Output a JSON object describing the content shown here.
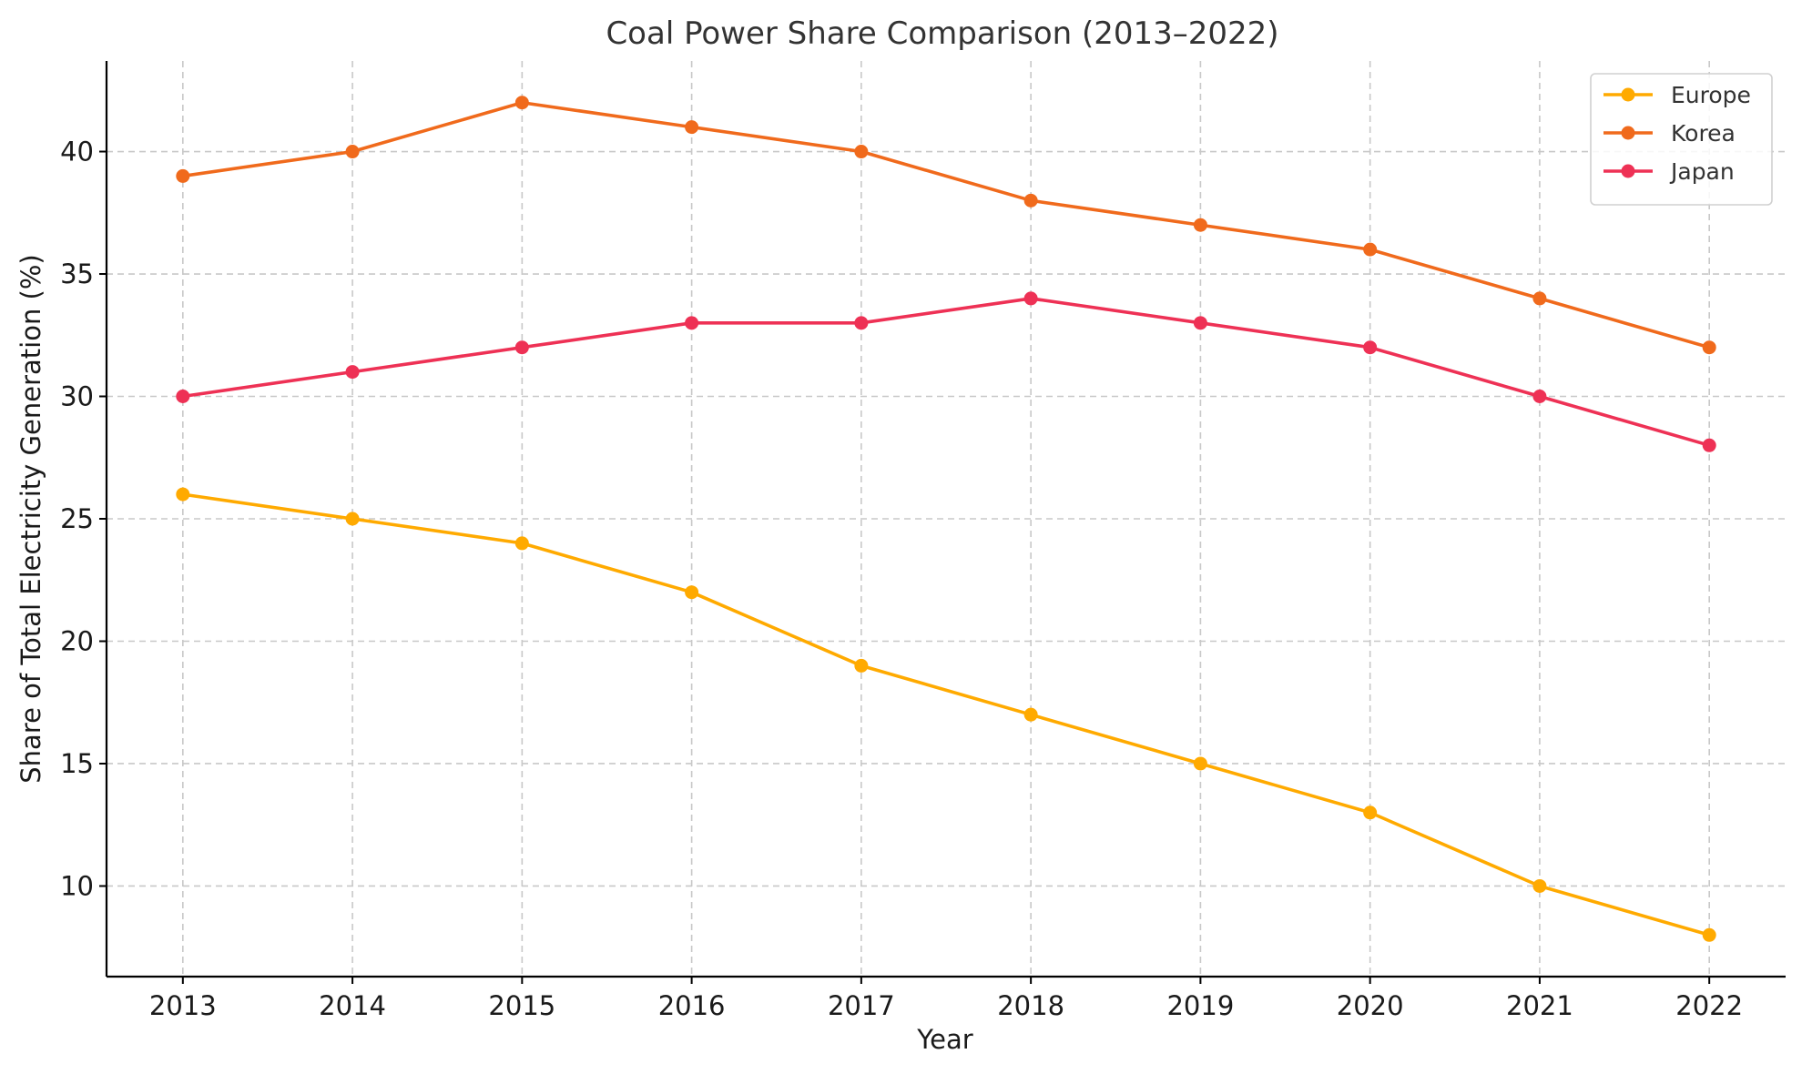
{
  "chart_data": {
    "type": "line",
    "title": "Coal Power Share Comparison (2013–2022)",
    "xlabel": "Year",
    "ylabel": "Share of Total Electricity Generation (%)",
    "x": [
      2013,
      2014,
      2015,
      2016,
      2017,
      2018,
      2019,
      2020,
      2021,
      2022
    ],
    "xlim": [
      2012.55,
      2022.45
    ],
    "ylim": [
      6.3,
      43.7
    ],
    "yticks": [
      10,
      15,
      20,
      25,
      30,
      35,
      40
    ],
    "grid": true,
    "legend_position": "top-right",
    "series": [
      {
        "name": "Europe",
        "color": "#FFAA00",
        "values": [
          26,
          25,
          24,
          22,
          19,
          17,
          15,
          13,
          10,
          8
        ]
      },
      {
        "name": "Korea",
        "color": "#F06A1C",
        "values": [
          39,
          40,
          42,
          41,
          40,
          38,
          37,
          36,
          34,
          32
        ]
      },
      {
        "name": "Japan",
        "color": "#EE3155",
        "values": [
          30,
          31,
          32,
          33,
          33,
          34,
          33,
          32,
          30,
          28
        ]
      }
    ]
  }
}
